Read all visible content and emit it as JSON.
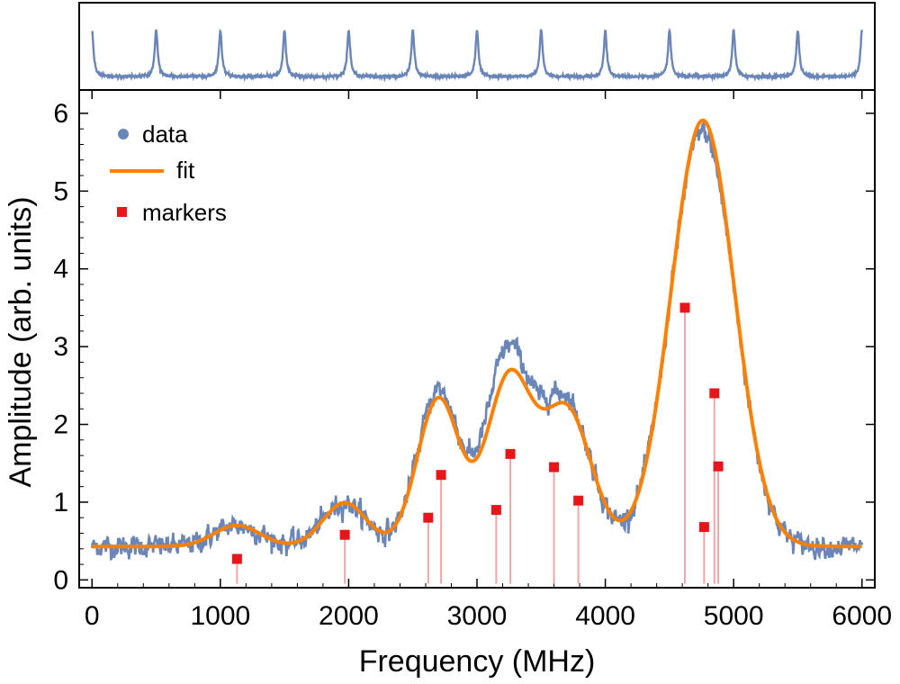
{
  "chart_data": [
    {
      "type": "line",
      "panel": "top",
      "description_free": true,
      "peak_centers": [
        0,
        500,
        1000,
        1500,
        2000,
        2500,
        3000,
        3500,
        4000,
        4500,
        5000,
        5500,
        6000
      ],
      "xlim": [
        0,
        6000
      ],
      "ylim": [
        0,
        1
      ],
      "baseline": 0.08,
      "peak_height": 0.62,
      "color": "#6a86b8"
    },
    {
      "type": "line",
      "panel": "main",
      "xlabel": "Frequency (MHz)",
      "ylabel": "Amplitude (arb. units)",
      "xlim": [
        -100,
        6100
      ],
      "ylim": [
        -0.1,
        6.3
      ],
      "xticks": [
        0,
        1000,
        2000,
        3000,
        4000,
        5000,
        6000
      ],
      "yticks": [
        0,
        1,
        2,
        3,
        4,
        5,
        6
      ],
      "legend": {
        "position": "top-left",
        "entries": [
          {
            "label": "data",
            "symbol": "dot",
            "color": "#6a86b8"
          },
          {
            "label": "fit",
            "symbol": "line",
            "color": "#ff8000"
          },
          {
            "label": "markers",
            "symbol": "square",
            "color": "#e8161b"
          }
        ]
      },
      "fit": {
        "name": "fit",
        "color": "#ff8000",
        "baseline": 0.43,
        "components": [
          {
            "center": 1130,
            "amplitude": 0.27,
            "width": 180
          },
          {
            "center": 1970,
            "amplitude": 0.56,
            "width": 170
          },
          {
            "center": 2700,
            "amplitude": 1.9,
            "width": 165
          },
          {
            "center": 3250,
            "amplitude": 2.15,
            "width": 175
          },
          {
            "center": 3700,
            "amplitude": 1.75,
            "width": 190
          },
          {
            "center": 4760,
            "amplitude": 5.48,
            "width": 245
          }
        ]
      },
      "data_series": {
        "name": "data",
        "color": "#6a86b8",
        "noise_sigma": 0.06,
        "offset_points": [
          [
            2700,
            0.1
          ],
          [
            3200,
            0.35
          ],
          [
            3600,
            0.15
          ],
          [
            4800,
            -0.15
          ]
        ]
      },
      "markers": {
        "name": "markers",
        "color": "#e8161b",
        "stem_color": "#f4a6a6",
        "points": [
          [
            1130,
            0.27
          ],
          [
            1970,
            0.58
          ],
          [
            2620,
            0.8
          ],
          [
            2720,
            1.35
          ],
          [
            3150,
            0.9
          ],
          [
            3260,
            1.62
          ],
          [
            3600,
            1.45
          ],
          [
            3790,
            1.02
          ],
          [
            4620,
            3.5
          ],
          [
            4770,
            0.68
          ],
          [
            4850,
            2.4
          ],
          [
            4880,
            1.46
          ]
        ]
      }
    }
  ]
}
